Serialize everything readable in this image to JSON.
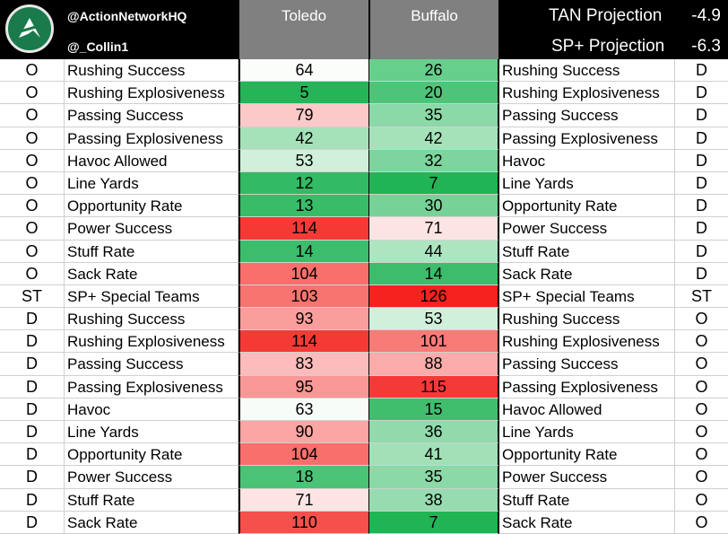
{
  "header": {
    "handle1": "@ActionNetworkHQ",
    "handle2": "@_Collin1",
    "team1": "Toledo",
    "team2": "Buffalo",
    "proj1_label": "TAN Projection",
    "proj1_value": "-4.9",
    "proj2_label": "SP+ Projection",
    "proj2_value": "-6.3",
    "logo_icon": "action-network-logo-icon"
  },
  "colors": {
    "header_bg": "#000000",
    "team_header_bg": "#808080",
    "logo_green": "#1a7a4b",
    "good": "#1fb55a",
    "bad": "#f5221e"
  },
  "rows": [
    {
      "side1": "O",
      "stat1": "Rushing Success",
      "toledo": "64",
      "buffalo": "26",
      "stat2": "Rushing Success",
      "side2": "D",
      "tol_color": "#fbfdfb",
      "buf_color": "#66cf8c"
    },
    {
      "side1": "O",
      "stat1": "Rushing Explosiveness",
      "toledo": "5",
      "buffalo": "20",
      "stat2": "Rushing Explosiveness",
      "side2": "D",
      "tol_color": "#24b558",
      "buf_color": "#4fc479"
    },
    {
      "side1": "O",
      "stat1": "Passing Success",
      "toledo": "79",
      "buffalo": "35",
      "stat2": "Passing Success",
      "side2": "D",
      "tol_color": "#fcc9c9",
      "buf_color": "#8ad9a6"
    },
    {
      "side1": "O",
      "stat1": "Passing Explosiveness",
      "toledo": "42",
      "buffalo": "42",
      "stat2": "Passing Explosiveness",
      "side2": "D",
      "tol_color": "#a5e2ba",
      "buf_color": "#a5e2ba"
    },
    {
      "side1": "O",
      "stat1": "Havoc Allowed",
      "toledo": "53",
      "buffalo": "32",
      "stat2": "Havoc",
      "side2": "D",
      "tol_color": "#d0f0db",
      "buf_color": "#7ed49d"
    },
    {
      "side1": "O",
      "stat1": "Line Yards",
      "toledo": "12",
      "buffalo": "7",
      "stat2": "Line Yards",
      "side2": "D",
      "tol_color": "#33ba64",
      "buf_color": "#20b455"
    },
    {
      "side1": "O",
      "stat1": "Opportunity Rate",
      "toledo": "13",
      "buffalo": "30",
      "stat2": "Opportunity Rate",
      "side2": "D",
      "tol_color": "#38bc68",
      "buf_color": "#77d297"
    },
    {
      "side1": "O",
      "stat1": "Power Success",
      "toledo": "114",
      "buffalo": "71",
      "stat2": "Power Success",
      "side2": "D",
      "tol_color": "#f53a36",
      "buf_color": "#fde4e4"
    },
    {
      "side1": "O",
      "stat1": "Stuff Rate",
      "toledo": "14",
      "buffalo": "44",
      "stat2": "Stuff Rate",
      "side2": "D",
      "tol_color": "#3cbd6b",
      "buf_color": "#ade5c1"
    },
    {
      "side1": "O",
      "stat1": "Sack Rate",
      "toledo": "104",
      "buffalo": "14",
      "stat2": "Sack Rate",
      "side2": "D",
      "tol_color": "#f86f6c",
      "buf_color": "#3cbd6b"
    },
    {
      "side1": "ST",
      "stat1": "SP+ Special Teams",
      "toledo": "103",
      "buffalo": "126",
      "stat2": "SP+ Special Teams",
      "side2": "ST",
      "tol_color": "#f87471",
      "buf_color": "#f5221e"
    },
    {
      "side1": "D",
      "stat1": "Rushing Success",
      "toledo": "93",
      "buffalo": "53",
      "stat2": "Rushing Success",
      "side2": "O",
      "tol_color": "#fa9e9c",
      "buf_color": "#d0f0db"
    },
    {
      "side1": "D",
      "stat1": "Rushing Explosiveness",
      "toledo": "114",
      "buffalo": "101",
      "stat2": "Rushing Explosiveness",
      "side2": "O",
      "tol_color": "#f53a36",
      "buf_color": "#f87b78"
    },
    {
      "side1": "D",
      "stat1": "Passing Success",
      "toledo": "83",
      "buffalo": "88",
      "stat2": "Passing Success",
      "side2": "O",
      "tol_color": "#fcbcbb",
      "buf_color": "#fbacaa"
    },
    {
      "side1": "D",
      "stat1": "Passing Explosiveness",
      "toledo": "95",
      "buffalo": "115",
      "stat2": "Passing Explosiveness",
      "side2": "O",
      "tol_color": "#f99896",
      "buf_color": "#f43a36"
    },
    {
      "side1": "D",
      "stat1": "Havoc",
      "toledo": "63",
      "buffalo": "15",
      "stat2": "Havoc Allowed",
      "side2": "O",
      "tol_color": "#f7fcf9",
      "buf_color": "#40be6e"
    },
    {
      "side1": "D",
      "stat1": "Line Yards",
      "toledo": "90",
      "buffalo": "36",
      "stat2": "Line Yards",
      "side2": "O",
      "tol_color": "#fba6a4",
      "buf_color": "#90daab"
    },
    {
      "side1": "D",
      "stat1": "Opportunity Rate",
      "toledo": "104",
      "buffalo": "41",
      "stat2": "Opportunity Rate",
      "side2": "O",
      "tol_color": "#f86f6c",
      "buf_color": "#a2e0b8"
    },
    {
      "side1": "D",
      "stat1": "Power Success",
      "toledo": "18",
      "buffalo": "35",
      "stat2": "Power Success",
      "side2": "O",
      "tol_color": "#4bc377",
      "buf_color": "#8ad9a6"
    },
    {
      "side1": "D",
      "stat1": "Stuff Rate",
      "toledo": "71",
      "buffalo": "38",
      "stat2": "Stuff Rate",
      "side2": "O",
      "tol_color": "#fde4e4",
      "buf_color": "#97dcb0"
    },
    {
      "side1": "D",
      "stat1": "Sack Rate",
      "toledo": "110",
      "buffalo": "7",
      "stat2": "Sack Rate",
      "side2": "O",
      "tol_color": "#f6504d",
      "buf_color": "#20b455"
    }
  ]
}
